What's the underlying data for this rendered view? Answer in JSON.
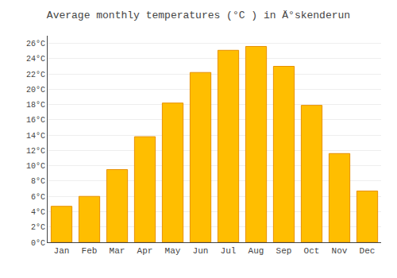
{
  "chart_data": {
    "type": "bar",
    "title": "Average monthly temperatures (°C ) in Ä°skenderun",
    "categories": [
      "Jan",
      "Feb",
      "Mar",
      "Apr",
      "May",
      "Jun",
      "Jul",
      "Aug",
      "Sep",
      "Oct",
      "Nov",
      "Dec"
    ],
    "values": [
      4.7,
      6.0,
      9.5,
      13.8,
      18.2,
      22.2,
      25.1,
      25.6,
      23.0,
      17.9,
      11.6,
      6.7
    ],
    "color": "#FFBE00",
    "ylim": [
      0,
      27
    ],
    "yticks": [
      {
        "value": 0,
        "label": "0°C"
      },
      {
        "value": 2,
        "label": "2°C"
      },
      {
        "value": 4,
        "label": "4°C"
      },
      {
        "value": 6,
        "label": "6°C"
      },
      {
        "value": 8,
        "label": "8°C"
      },
      {
        "value": 10,
        "label": "10°C"
      },
      {
        "value": 12,
        "label": "12°C"
      },
      {
        "value": 14,
        "label": "14°C"
      },
      {
        "value": 16,
        "label": "16°C"
      },
      {
        "value": 18,
        "label": "18°C"
      },
      {
        "value": 20,
        "label": "20°C"
      },
      {
        "value": 22,
        "label": "22°C"
      },
      {
        "value": 24,
        "label": "24°C"
      },
      {
        "value": 26,
        "label": "26°C"
      }
    ],
    "grid": true
  }
}
